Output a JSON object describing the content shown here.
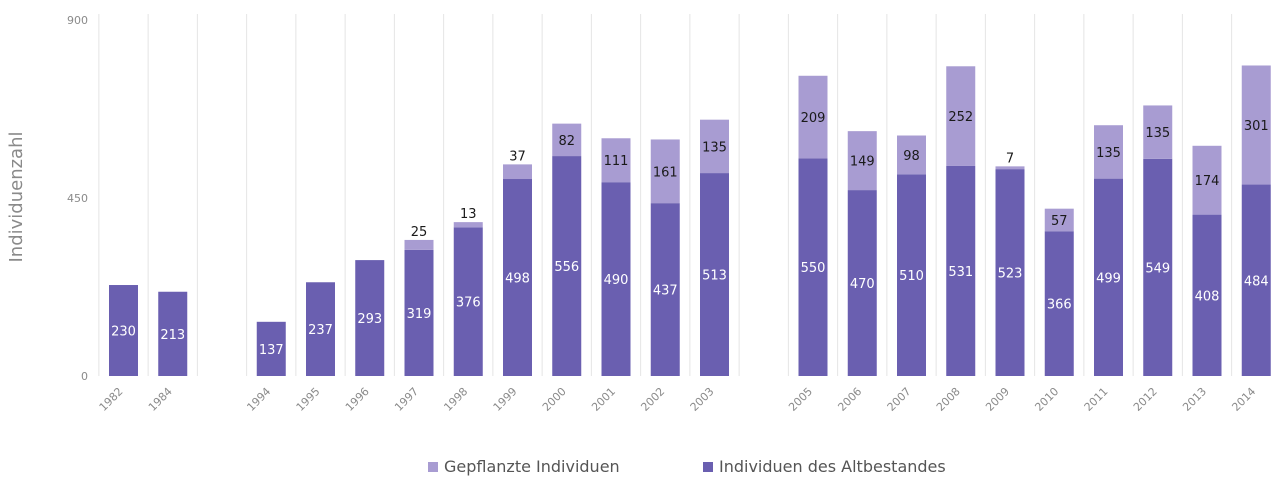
{
  "chart_data": {
    "type": "bar",
    "stacked": true,
    "title": "",
    "xlabel": "",
    "ylabel": "Individuenzahl",
    "ylim": [
      0,
      900
    ],
    "yticks": [
      0,
      450,
      900
    ],
    "grid": "vertical",
    "legend_position": "bottom",
    "categories": [
      "1982",
      "1984",
      "",
      "1994",
      "1995",
      "1996",
      "1997",
      "1998",
      "1999",
      "2000",
      "2001",
      "2002",
      "2003",
      "",
      "2005",
      "2006",
      "2007",
      "2008",
      "2009",
      "2010",
      "2011",
      "2012",
      "2013",
      "2014"
    ],
    "series": [
      {
        "name": "Individuen des Altbestandes",
        "color": "#6a5fb0",
        "values": [
          230,
          213,
          null,
          137,
          237,
          293,
          319,
          376,
          498,
          556,
          490,
          437,
          513,
          null,
          550,
          470,
          510,
          531,
          523,
          366,
          499,
          549,
          408,
          484
        ]
      },
      {
        "name": "Gepflanzte Individuen",
        "color": "#a89cd2",
        "values": [
          null,
          null,
          null,
          null,
          null,
          null,
          25,
          13,
          37,
          82,
          111,
          161,
          135,
          null,
          209,
          149,
          98,
          252,
          7,
          57,
          135,
          135,
          174,
          301
        ]
      }
    ]
  }
}
